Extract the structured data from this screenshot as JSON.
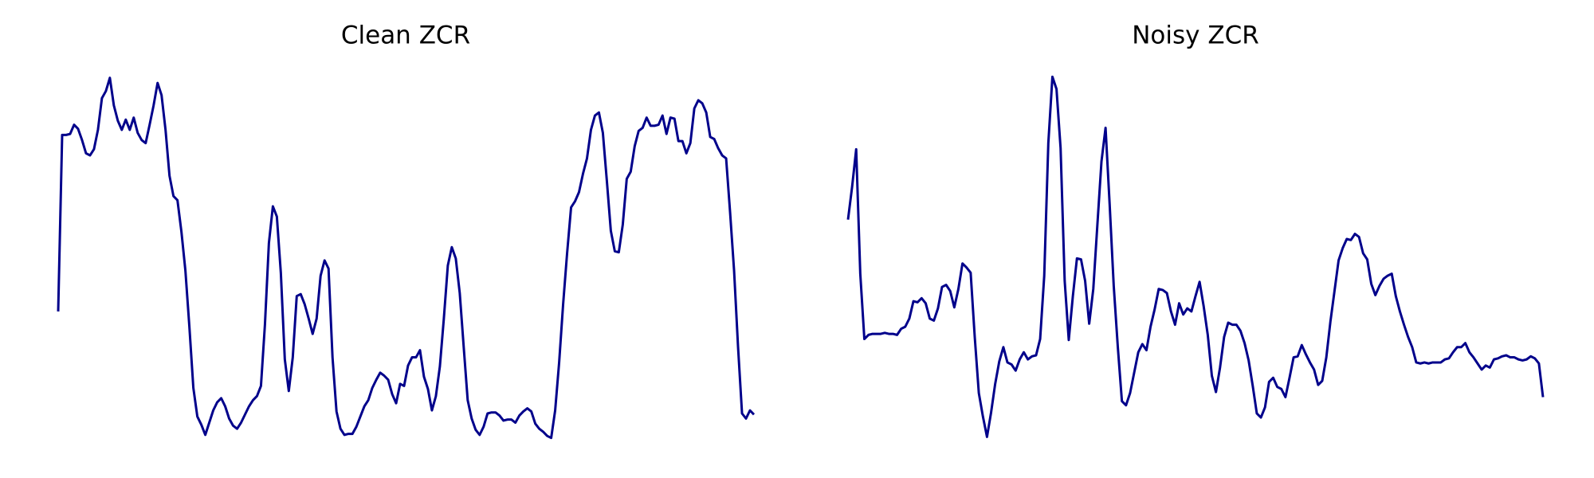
{
  "chart_data": [
    {
      "type": "line",
      "title": "Clean ZCR",
      "ylim": [
        0,
        360
      ],
      "grid": false,
      "series": [
        {
          "color": "#00008b",
          "values": [
            125,
            298,
            298,
            299,
            308,
            304,
            293,
            280,
            278,
            284,
            303,
            334,
            341,
            354,
            327,
            312,
            303,
            313,
            303,
            315,
            300,
            293,
            290,
            308,
            327,
            349,
            337,
            303,
            258,
            238,
            234,
            203,
            165,
            110,
            50,
            22,
            14,
            4,
            16,
            28,
            36,
            40,
            32,
            20,
            13,
            10,
            16,
            24,
            32,
            38,
            42,
            52,
            112,
            192,
            228,
            218,
            163,
            78,
            47,
            80,
            140,
            142,
            132,
            118,
            103,
            118,
            160,
            175,
            167,
            80,
            27,
            10,
            4,
            5,
            5,
            12,
            22,
            32,
            38,
            50,
            58,
            65,
            62,
            58,
            44,
            35,
            54,
            52,
            72,
            80,
            80,
            87,
            61,
            49,
            28,
            42,
            71,
            118,
            170,
            188,
            177,
            143,
            90,
            38,
            20,
            9,
            4,
            12,
            25,
            26,
            26,
            23,
            18,
            19,
            19,
            16,
            23,
            27,
            30,
            27,
            15,
            10,
            7,
            3,
            1,
            28,
            75,
            132,
            182,
            227,
            233,
            242,
            260,
            275,
            303,
            317,
            320,
            300,
            253,
            204,
            184,
            183,
            210,
            255,
            262,
            287,
            302,
            305,
            315,
            307,
            307,
            308,
            317,
            299,
            315,
            314,
            292,
            292,
            280,
            290,
            324,
            332,
            329,
            320,
            296,
            294,
            285,
            278,
            275,
            222,
            165,
            90,
            25,
            20,
            28,
            24
          ]
        }
      ]
    },
    {
      "type": "line",
      "title": "Noisy ZCR",
      "ylim": [
        0,
        360
      ],
      "grid": false,
      "series": [
        {
          "color": "#00008b",
          "values": [
            215,
            247,
            284,
            162,
            98,
            102,
            103,
            103,
            103,
            104,
            103,
            103,
            102,
            108,
            110,
            118,
            135,
            134,
            138,
            133,
            118,
            116,
            128,
            149,
            151,
            145,
            129,
            147,
            172,
            168,
            163,
            100,
            45,
            22,
            2,
            26,
            54,
            76,
            90,
            75,
            73,
            67,
            78,
            85,
            78,
            81,
            82,
            98,
            160,
            290,
            355,
            343,
            285,
            155,
            97,
            140,
            177,
            176,
            155,
            113,
            147,
            210,
            272,
            305,
            230,
            150,
            90,
            37,
            33,
            45,
            65,
            85,
            93,
            87,
            110,
            127,
            147,
            146,
            143,
            125,
            112,
            133,
            122,
            128,
            125,
            140,
            154,
            130,
            102,
            62,
            46,
            70,
            100,
            114,
            112,
            112,
            106,
            94,
            77,
            52,
            25,
            21,
            31,
            56,
            60,
            51,
            49,
            41,
            60,
            80,
            81,
            92,
            83,
            75,
            68,
            53,
            57,
            80,
            115,
            145,
            175,
            187,
            196,
            195,
            201,
            198,
            182,
            176,
            152,
            141,
            150,
            157,
            160,
            162,
            140,
            125,
            112,
            100,
            90,
            75,
            74,
            75,
            74,
            75,
            75,
            75,
            78,
            79,
            85,
            90,
            90,
            94,
            85,
            80,
            74,
            68,
            72,
            70,
            78,
            79,
            81,
            82,
            80,
            80,
            78,
            77,
            78,
            81,
            79,
            74,
            41
          ]
        }
      ]
    }
  ]
}
